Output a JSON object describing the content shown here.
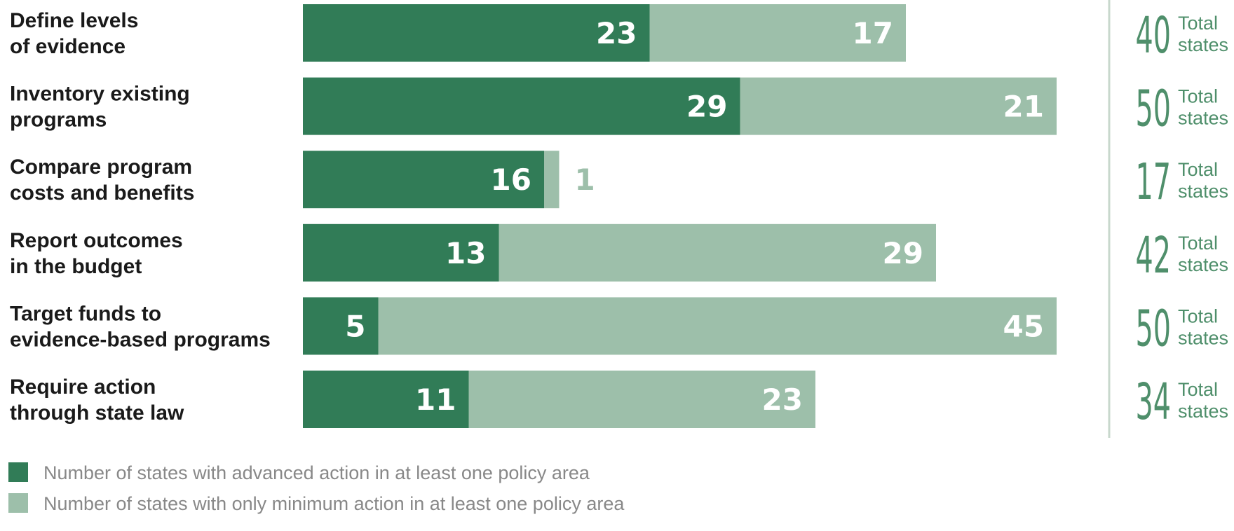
{
  "colors": {
    "advanced": "#317c57",
    "minimum": "#9dbfaa",
    "total_text": "#4f8f6b",
    "divider": "#c8d8cd",
    "label_text": "#1a1a1a",
    "legend_text": "#888888"
  },
  "chart_data": {
    "type": "bar",
    "orientation": "horizontal",
    "stacked": true,
    "categories": [
      [
        "Define levels",
        "of evidence"
      ],
      [
        "Inventory existing",
        "programs"
      ],
      [
        "Compare program",
        "costs and benefits"
      ],
      [
        "Report outcomes",
        "in the budget"
      ],
      [
        "Target funds to",
        "evidence-based programs"
      ],
      [
        "Require action",
        "through state law"
      ]
    ],
    "series": [
      {
        "name": "Number of states with advanced action in at least one policy area",
        "key": "advanced",
        "values": [
          23,
          29,
          16,
          13,
          5,
          11
        ]
      },
      {
        "name": "Number of states with only minimum action in at least one policy area",
        "key": "minimum",
        "values": [
          17,
          21,
          1,
          29,
          45,
          23
        ]
      }
    ],
    "totals": [
      40,
      50,
      17,
      42,
      50,
      34
    ],
    "total_word": [
      "Total",
      "states"
    ],
    "xlim": [
      0,
      50
    ],
    "legend_position": "bottom-left",
    "grid": false
  }
}
